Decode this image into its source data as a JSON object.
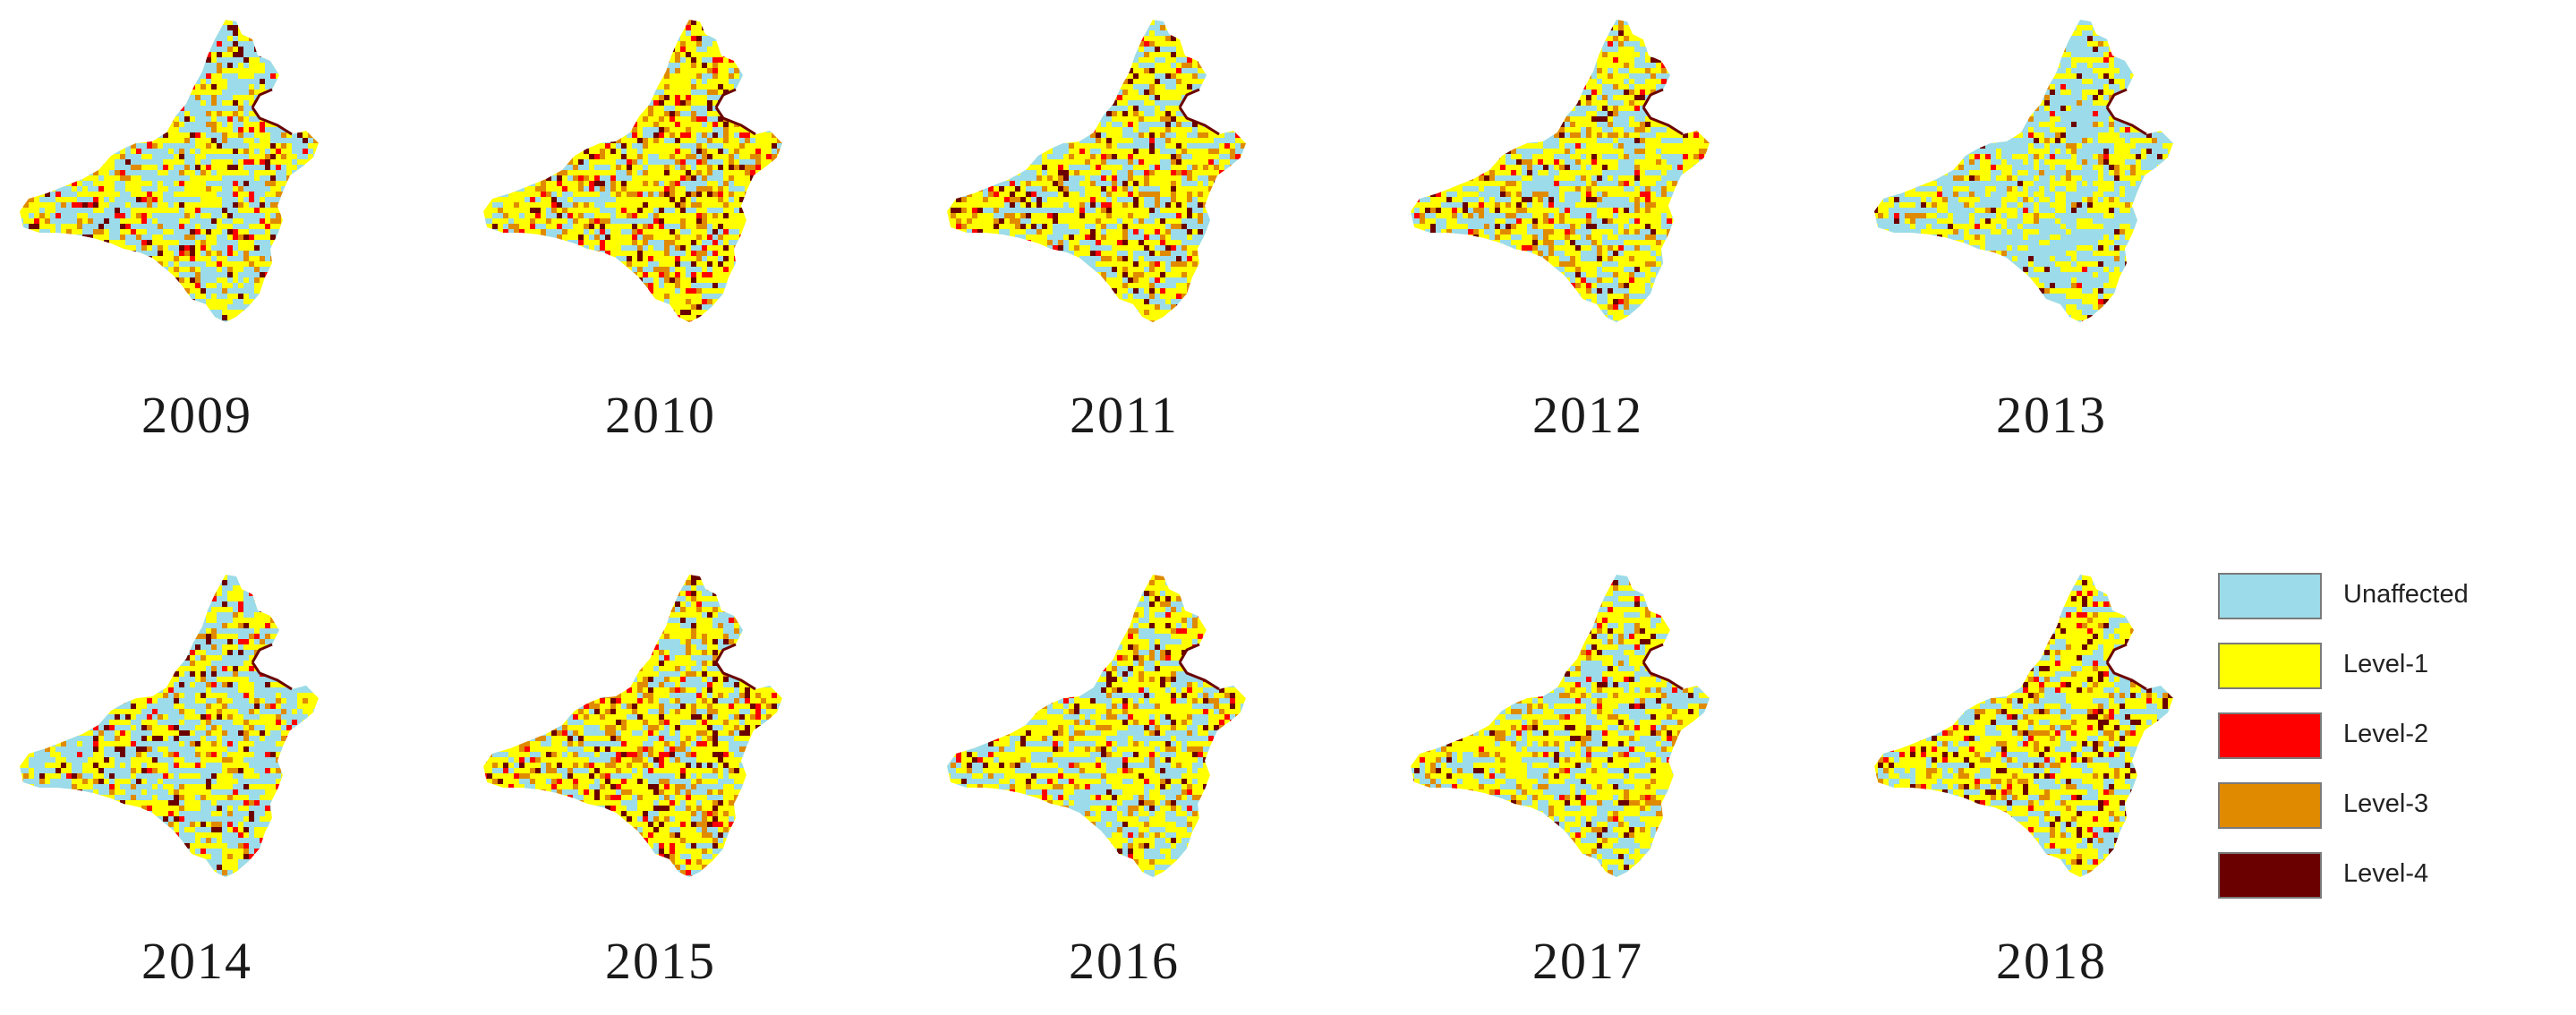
{
  "colors": {
    "unaffected": "#9bdbea",
    "level1": "#ffff00",
    "level2": "#ff0000",
    "level3": "#e08a00",
    "level4": "#6b0000"
  },
  "maps": [
    {
      "year": "2009",
      "mix": [
        0.3,
        0.52,
        0.04,
        0.08,
        0.06
      ]
    },
    {
      "year": "2010",
      "mix": [
        0.14,
        0.58,
        0.06,
        0.14,
        0.08
      ]
    },
    {
      "year": "2011",
      "mix": [
        0.18,
        0.58,
        0.05,
        0.12,
        0.07
      ]
    },
    {
      "year": "2012",
      "mix": [
        0.24,
        0.56,
        0.04,
        0.1,
        0.06
      ]
    },
    {
      "year": "2013",
      "mix": [
        0.4,
        0.5,
        0.02,
        0.04,
        0.04
      ]
    },
    {
      "year": "2014",
      "mix": [
        0.32,
        0.52,
        0.04,
        0.07,
        0.05
      ]
    },
    {
      "year": "2015",
      "mix": [
        0.16,
        0.58,
        0.06,
        0.13,
        0.07
      ]
    },
    {
      "year": "2016",
      "mix": [
        0.22,
        0.6,
        0.04,
        0.09,
        0.05
      ]
    },
    {
      "year": "2017",
      "mix": [
        0.22,
        0.6,
        0.04,
        0.09,
        0.05
      ]
    },
    {
      "year": "2018",
      "mix": [
        0.18,
        0.6,
        0.05,
        0.1,
        0.07
      ]
    }
  ],
  "legend": [
    {
      "label": "Unaffected",
      "color": "#9bdbea"
    },
    {
      "label": "Level-1",
      "color": "#ffff00"
    },
    {
      "label": "Level-2",
      "color": "#ff0000"
    },
    {
      "label": "Level-3",
      "color": "#e08a00"
    },
    {
      "label": "Level-4",
      "color": "#6b0000"
    }
  ]
}
